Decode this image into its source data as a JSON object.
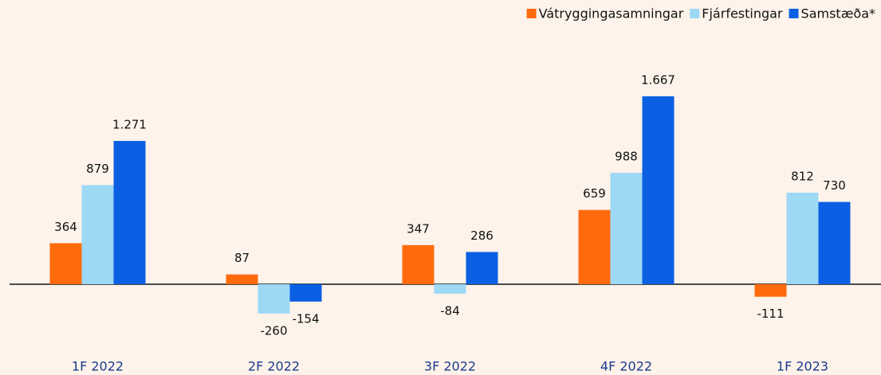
{
  "chart_data": {
    "type": "bar",
    "categories": [
      "1F 2022",
      "2F 2022",
      "3F 2022",
      "4F 2022",
      "1F 2023"
    ],
    "series": [
      {
        "name": "Vátryggingasamningar",
        "color": "#ff6a0d",
        "values": [
          364,
          87,
          347,
          659,
          -111
        ],
        "value_labels": [
          "364",
          "87",
          "347",
          "659",
          "-111"
        ]
      },
      {
        "name": "Fjárfestingar",
        "color": "#9dd8f5",
        "values": [
          879,
          -260,
          -84,
          988,
          812
        ],
        "value_labels": [
          "879",
          "-260",
          "-84",
          "988",
          "812"
        ]
      },
      {
        "name": "Samstæða*",
        "color": "#0b5fe3",
        "values": [
          1271,
          -154,
          286,
          1667,
          730
        ],
        "value_labels": [
          "1.271",
          "-154",
          "286",
          "1.667",
          "730"
        ]
      }
    ],
    "legend": "top-right"
  }
}
